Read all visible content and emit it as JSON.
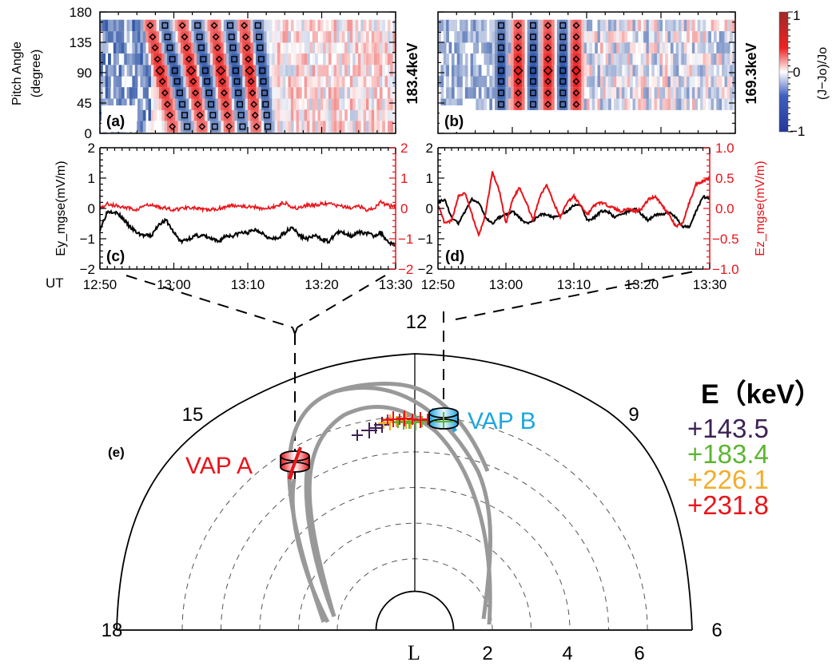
{
  "chart_data": [
    {
      "id": "a",
      "type": "heatmap",
      "panel_label": "(a)",
      "energy_label": "183.4keV",
      "ylabel": "Pitch Angle\n(degree)",
      "ylabel_lines": [
        "Pitch Angle",
        "(degree)"
      ],
      "yticks": [
        "0",
        "45",
        "90",
        "135",
        "180"
      ],
      "ylim": [
        0,
        180
      ],
      "xlim_minutes": [
        0,
        40
      ],
      "pitch_bins": [
        10,
        27,
        43,
        60,
        77,
        93,
        110,
        127,
        143,
        160
      ],
      "description": "Normalized flux deviation (J-Jo)/Jo vs time and pitch angle; tilted alternating red/blue stripes between ~12:58 and ~13:18 with diamonds marking peaks and squares marking troughs",
      "stripes": [
        {
          "sign": "+",
          "t_center_90": 8.2,
          "tilt": -0.9
        },
        {
          "sign": "-",
          "t_center_90": 10.2,
          "tilt": -0.9
        },
        {
          "sign": "+",
          "t_center_90": 12.4,
          "tilt": -0.8
        },
        {
          "sign": "-",
          "t_center_90": 14.3,
          "tilt": -0.7
        },
        {
          "sign": "+",
          "t_center_90": 16.4,
          "tilt": -0.6
        },
        {
          "sign": "-",
          "t_center_90": 18.4,
          "tilt": -0.5
        },
        {
          "sign": "+",
          "t_center_90": 20.3,
          "tilt": -0.5
        },
        {
          "sign": "-",
          "t_center_90": 22.0,
          "tilt": -0.4
        }
      ],
      "background_noise": "blue-dominant before 12:58, red/white after 13:18"
    },
    {
      "id": "b",
      "type": "heatmap",
      "panel_label": "(b)",
      "energy_label": "169.3keV",
      "yticks": [
        "0",
        "45",
        "90",
        "135",
        "180"
      ],
      "ylim": [
        0,
        180
      ],
      "xlim_minutes": [
        0,
        40
      ],
      "pitch_bins": [
        43,
        60,
        77,
        93,
        110,
        127,
        143,
        160
      ],
      "description": "Vertical (untilted) alternating stripes between ~12:59 and ~13:09",
      "stripes": [
        {
          "sign": "-",
          "t_center_90": 8.5,
          "tilt": 0
        },
        {
          "sign": "+",
          "t_center_90": 10.8,
          "tilt": 0
        },
        {
          "sign": "-",
          "t_center_90": 12.8,
          "tilt": 0
        },
        {
          "sign": "+",
          "t_center_90": 14.8,
          "tilt": 0
        },
        {
          "sign": "-",
          "t_center_90": 16.8,
          "tilt": 0
        },
        {
          "sign": "+",
          "t_center_90": 18.6,
          "tilt": 0
        }
      ]
    },
    {
      "id": "colorbar",
      "type": "colorbar",
      "label": "(J−Jo)/Jo",
      "ticks": [
        "1",
        "0",
        "−1"
      ],
      "range": [
        -1,
        1
      ],
      "colors": {
        "low": "#24379a",
        "mid": "#ffffff",
        "high_mid": "#ee2222",
        "high": "#a02828"
      }
    },
    {
      "id": "c",
      "type": "line",
      "panel_label": "(c)",
      "ylabel_left": "Ey_mgse(mV/m)",
      "ylim_left": [
        -2,
        2
      ],
      "yticks_left": [
        "2",
        "1",
        "0",
        "−1",
        "−2"
      ],
      "ylim_right": [
        -2,
        2
      ],
      "yticks_right": [
        "2",
        "1",
        "0",
        "−1",
        "−2"
      ],
      "xticks": [
        "12:50",
        "13:00",
        "13:10",
        "13:20",
        "13:30"
      ],
      "xlabel": "UT",
      "series": [
        {
          "name": "Ey_mgse",
          "color": "#000000",
          "axis": "left",
          "t": [
            0,
            1,
            2,
            3,
            4,
            5,
            6,
            7,
            8,
            9,
            10,
            11,
            12,
            13,
            14,
            15,
            16,
            17,
            18,
            19,
            20,
            21,
            22,
            23,
            24,
            25,
            26,
            27,
            28,
            29,
            30,
            31,
            32,
            33,
            34,
            35,
            36,
            37,
            38,
            39,
            40
          ],
          "values": [
            -0.7,
            -0.1,
            -0.1,
            -0.3,
            -0.6,
            -0.8,
            -0.9,
            -0.9,
            -0.5,
            -0.4,
            -0.8,
            -1.1,
            -1.0,
            -0.9,
            -0.9,
            -1.0,
            -1.1,
            -0.9,
            -0.9,
            -0.8,
            -0.8,
            -0.7,
            -0.8,
            -1.0,
            -1.0,
            -0.8,
            -0.6,
            -0.9,
            -1.0,
            -0.9,
            -1.0,
            -1.1,
            -0.8,
            -0.8,
            -0.9,
            -0.8,
            -0.8,
            -0.9,
            -0.8,
            -1.1,
            -1.2
          ]
        },
        {
          "name": "Ez_mgse",
          "color": "#e8141a",
          "axis": "right",
          "t": [
            0,
            1,
            2,
            3,
            4,
            5,
            6,
            7,
            8,
            9,
            10,
            11,
            12,
            13,
            14,
            15,
            16,
            17,
            18,
            19,
            20,
            21,
            22,
            23,
            24,
            25,
            26,
            27,
            28,
            29,
            30,
            31,
            32,
            33,
            34,
            35,
            36,
            37,
            38,
            39,
            40
          ],
          "values": [
            0.0,
            0.15,
            0.1,
            0.05,
            0.0,
            -0.05,
            0.1,
            0.1,
            0.05,
            0.0,
            -0.05,
            0.0,
            0.05,
            0.0,
            -0.05,
            -0.05,
            0.0,
            0.05,
            0.1,
            0.1,
            0.05,
            0.05,
            0.0,
            0.0,
            0.1,
            0.2,
            0.05,
            0.0,
            0.1,
            0.1,
            0.15,
            0.15,
            0.1,
            0.05,
            0.0,
            0.1,
            -0.05,
            0.0,
            0.2,
            0.1,
            0.05
          ]
        }
      ]
    },
    {
      "id": "d",
      "type": "line",
      "panel_label": "(d)",
      "ylim_left": [
        -2,
        2
      ],
      "yticks_left": [
        "2",
        "1",
        "0",
        "−1",
        "−2"
      ],
      "ylabel_right": "Ez_mgse(mV/m)",
      "ylim_right": [
        -1.0,
        1.0
      ],
      "yticks_right": [
        "1.0",
        "0.5",
        "0.0",
        "−0.5",
        "−1.0"
      ],
      "xticks": [
        "12:50",
        "13:00",
        "13:10",
        "13:20",
        "13:30"
      ],
      "series": [
        {
          "name": "Ey_mgse",
          "color": "#000000",
          "axis": "left",
          "t": [
            0,
            1,
            2,
            3,
            4,
            5,
            6,
            7,
            8,
            9,
            10,
            11,
            12,
            13,
            14,
            15,
            16,
            17,
            18,
            19,
            20,
            21,
            22,
            23,
            24,
            25,
            26,
            27,
            28,
            29,
            30,
            31,
            32,
            33,
            34,
            35,
            36,
            37,
            38,
            39,
            40
          ],
          "values": [
            0.2,
            0.3,
            -0.3,
            -0.5,
            -0.1,
            0.3,
            0.2,
            -0.3,
            -0.5,
            -0.3,
            -0.2,
            -0.1,
            -0.3,
            -0.5,
            -0.4,
            -0.2,
            -0.2,
            -0.3,
            -0.2,
            -0.1,
            0.1,
            0.1,
            -0.4,
            -0.3,
            -0.1,
            -0.1,
            -0.3,
            -0.2,
            -0.1,
            0.0,
            -0.2,
            -0.4,
            -0.2,
            -0.2,
            -0.1,
            -0.3,
            -0.6,
            -0.6,
            -0.1,
            0.4,
            0.3
          ]
        },
        {
          "name": "Ez_mgse",
          "color": "#e8141a",
          "axis": "right",
          "t": [
            0,
            1,
            2,
            3,
            4,
            5,
            6,
            7,
            8,
            9,
            10,
            11,
            12,
            13,
            14,
            15,
            16,
            17,
            18,
            19,
            20,
            21,
            22,
            23,
            24,
            25,
            26,
            27,
            28,
            29,
            30,
            31,
            32,
            33,
            34,
            35,
            36,
            37,
            38,
            39,
            40
          ],
          "values": [
            0.05,
            -0.25,
            -0.2,
            0.2,
            0.25,
            -0.1,
            -0.45,
            -0.1,
            0.6,
            0.3,
            -0.25,
            0.15,
            0.35,
            0.1,
            -0.2,
            0.2,
            0.4,
            0.1,
            -0.15,
            0.1,
            0.2,
            0.05,
            -0.1,
            0.05,
            0.1,
            0.05,
            0.0,
            -0.05,
            0.0,
            -0.05,
            0.0,
            0.15,
            0.2,
            0.05,
            -0.1,
            -0.3,
            -0.25,
            0.1,
            0.4,
            0.45,
            0.5
          ]
        }
      ]
    },
    {
      "id": "e",
      "type": "scatter",
      "panel_label": "(e)",
      "description": "Polar (MLT vs L) view of dayside magnetosphere with Van Allen Probes positions and drift paths",
      "mlt_labels": [
        "18",
        "15",
        "12",
        "9",
        "6"
      ],
      "l_axis_label": "L",
      "l_ticks": [
        "2",
        "4",
        "6"
      ],
      "l_circles": [
        2,
        3,
        4,
        5,
        6
      ],
      "spacecraft": [
        {
          "name": "VAP A",
          "color": "#e8141a",
          "mlt": 13.8,
          "L": 5.4
        },
        {
          "name": "VAP B",
          "color": "#1ea6e0",
          "mlt": 11.3,
          "L": 5.7
        }
      ],
      "legend_title": "E（keV）",
      "legend": [
        {
          "label": "143.5",
          "color": "#3d2255"
        },
        {
          "label": "183.4",
          "color": "#5cb531"
        },
        {
          "label": "226.1",
          "color": "#f2ad2a"
        },
        {
          "label": "231.8",
          "color": "#e8141a"
        }
      ],
      "source_markers": [
        {
          "energy": "143.5",
          "color": "#3d2255",
          "points": [
            [
              12.9,
              5.6
            ],
            [
              12.75,
              5.7
            ],
            [
              12.6,
              5.72
            ]
          ]
        },
        {
          "energy": "226.1",
          "color": "#f2ad2a",
          "points": [
            [
              12.5,
              5.85
            ],
            [
              12.35,
              5.85
            ],
            [
              12.2,
              5.9
            ]
          ]
        },
        {
          "energy": "183.4",
          "color": "#5cb531",
          "points": [
            [
              12.3,
              5.85
            ],
            [
              12.1,
              5.82
            ],
            [
              12.0,
              5.8
            ]
          ]
        },
        {
          "energy": "231.8",
          "color": "#e8141a",
          "points": [
            [
              12.4,
              5.9
            ],
            [
              12.2,
              5.9
            ],
            [
              11.9,
              5.85
            ],
            [
              11.7,
              5.8
            ]
          ]
        }
      ]
    }
  ],
  "text": {
    "ut_label": "UT",
    "panel_a": "(a)",
    "panel_b": "(b)",
    "panel_c": "(c)",
    "panel_d": "(d)",
    "panel_e": "(e)",
    "energy_a": "183.4keV",
    "energy_b": "169.3keV",
    "colorbar_label": "(J−Jo)/Jo",
    "cb_1": "1",
    "cb_0": "0",
    "cb_m1": "−1",
    "ylabel_pa_1": "Pitch Angle",
    "ylabel_pa_2": "(degree)",
    "ylabel_c": "Ey_mgse(mV/m)",
    "ylabel_d": "Ez_mgse(mV/m)",
    "mlt_18": "18",
    "mlt_15": "15",
    "mlt_12": "12",
    "mlt_9": "9",
    "mlt_6": "6",
    "l_label": "L",
    "l_2": "2",
    "l_4": "4",
    "l_6": "6",
    "vap_a": "VAP  A",
    "vap_b": "VAP  B",
    "legend_title": "E（keV）",
    "leg_0": "+143.5",
    "leg_1": "+183.4",
    "leg_2": "+226.1",
    "leg_3": "+231.8"
  }
}
